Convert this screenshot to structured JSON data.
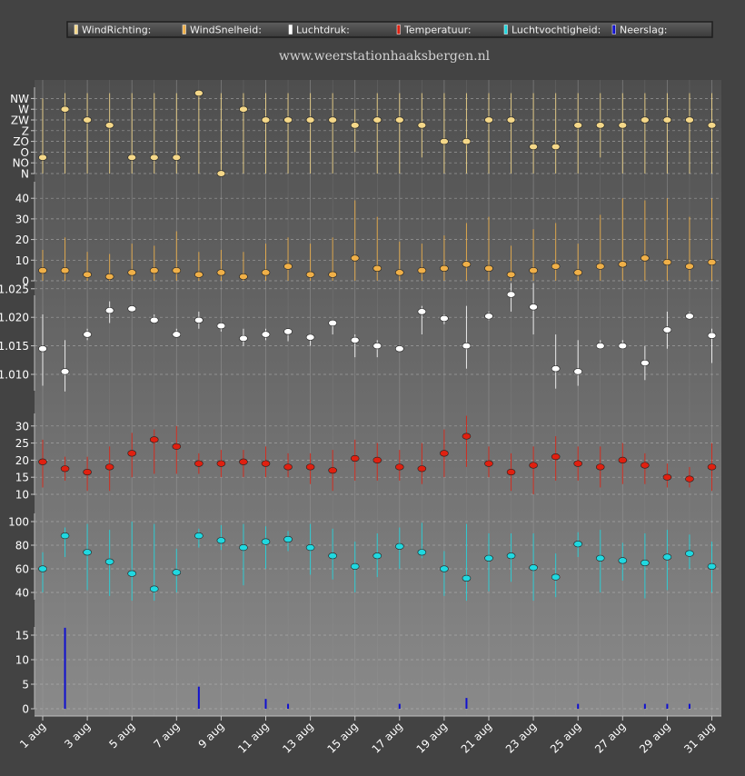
{
  "chart_data": {
    "type": "scatter",
    "subtitle": "www.weerstationhaaksbergen.nl",
    "x_ticks": [
      "1 aug",
      "3 aug",
      "5 aug",
      "7 aug",
      "9 aug",
      "11 aug",
      "13 aug",
      "15 aug",
      "17 aug",
      "19 aug",
      "21 aug",
      "23 aug",
      "25 aug",
      "27 aug",
      "29 aug",
      "31 aug"
    ],
    "legend": [
      {
        "label": "WindRichting:",
        "color": "#f5d889"
      },
      {
        "label": "WindSnelheid:",
        "color": "#f0b048"
      },
      {
        "label": "Luchtdruk:",
        "color": "#ffffff"
      },
      {
        "label": "Temperatuur:",
        "color": "#e02010"
      },
      {
        "label": "Luchtvochtigheid:",
        "color": "#20d8e0"
      },
      {
        "label": "Neerslag:",
        "color": "#1010d0"
      }
    ],
    "panels": [
      {
        "name": "WindRichting",
        "color": "#f5d889",
        "tick_values": [
          0,
          1,
          2,
          3,
          4,
          5,
          6,
          7
        ],
        "tick_labels": [
          "N",
          "NO",
          "O",
          "ZO",
          "Z",
          "ZW",
          "W",
          "NW"
        ],
        "values": [
          1.5,
          6,
          5,
          4.5,
          1.5,
          1.5,
          1.5,
          7.5,
          0,
          6,
          5,
          5,
          5,
          5,
          4.5,
          5,
          5,
          4.5,
          3,
          3,
          5,
          5,
          2.5,
          2.5,
          4.5,
          4.5,
          4.5,
          5,
          5,
          5,
          4.5
        ],
        "high": [
          7,
          7.5,
          7.5,
          7.5,
          7.5,
          7.5,
          7.5,
          7.5,
          7.5,
          7.5,
          7.5,
          7.5,
          7.5,
          7.5,
          6,
          7.5,
          7.5,
          7.5,
          7.5,
          7.5,
          7.5,
          7.5,
          7.5,
          7.5,
          7.5,
          7.5,
          7.5,
          7.5,
          7.5,
          7.5,
          7.5
        ],
        "low": [
          0,
          0,
          0,
          0,
          0,
          0,
          0,
          0,
          0,
          0,
          0,
          0,
          0,
          0,
          2,
          0,
          0,
          1.5,
          0,
          0,
          0,
          0,
          0,
          0,
          0,
          1.5,
          0,
          0,
          0,
          0,
          0
        ]
      },
      {
        "name": "WindSnelheid",
        "color": "#f0b048",
        "ylim": [
          0,
          40
        ],
        "ticks": [
          0,
          10,
          20,
          30,
          40
        ],
        "values": [
          5,
          5,
          3,
          2,
          4,
          5,
          5,
          3,
          4,
          2,
          4,
          7,
          3,
          3,
          11,
          6,
          4,
          5,
          6,
          8,
          6,
          3,
          5,
          7,
          4,
          7,
          8,
          11,
          9,
          7,
          9
        ],
        "high": [
          15,
          21,
          14,
          13,
          18,
          17,
          24,
          14,
          15,
          14,
          18,
          21,
          18,
          21,
          39,
          31,
          19,
          18,
          22,
          28,
          31,
          17,
          25,
          28,
          18,
          32,
          40,
          39,
          40,
          31,
          40
        ],
        "low": [
          0,
          0,
          0,
          0,
          0,
          0,
          0,
          0,
          0,
          0,
          0,
          0,
          0,
          0,
          0,
          0,
          0,
          0,
          0,
          0,
          0,
          0,
          0,
          0,
          0,
          0,
          0,
          0,
          0,
          0,
          0
        ]
      },
      {
        "name": "Luchtdruk",
        "color": "#ffffff",
        "ylim": [
          1.006,
          1.028
        ],
        "ticks": [
          1.01,
          1.015,
          1.02,
          1.025
        ],
        "tick_labels": [
          "1.010",
          "1.015",
          "1.020",
          "1.025"
        ],
        "values": [
          1.0145,
          1.0105,
          1.017,
          1.0212,
          1.0215,
          1.0195,
          1.017,
          1.0195,
          1.0185,
          1.0163,
          1.017,
          1.0175,
          1.0165,
          1.019,
          1.016,
          1.015,
          1.0145,
          1.021,
          1.0198,
          1.015,
          1.0202,
          1.024,
          1.0218,
          1.011,
          1.0105,
          1.015,
          1.015,
          1.012,
          1.0178,
          1.0202,
          1.0168
        ],
        "high": [
          1.0205,
          1.016,
          1.018,
          1.0228,
          1.022,
          1.0205,
          1.018,
          1.021,
          1.019,
          1.018,
          1.018,
          1.018,
          1.017,
          1.0195,
          1.017,
          1.016,
          1.015,
          1.022,
          1.0205,
          1.022,
          1.021,
          1.026,
          1.026,
          1.017,
          1.016,
          1.016,
          1.016,
          1.015,
          1.021,
          1.021,
          1.018
        ],
        "low": [
          1.008,
          1.007,
          1.016,
          1.019,
          1.021,
          1.019,
          1.0165,
          1.018,
          1.0175,
          1.015,
          1.016,
          1.0158,
          1.015,
          1.017,
          1.013,
          1.013,
          1.014,
          1.017,
          1.0188,
          1.011,
          1.0195,
          1.021,
          1.017,
          1.0075,
          1.008,
          1.0145,
          1.0145,
          1.009,
          1.0145,
          1.0198,
          1.012
        ]
      },
      {
        "name": "Temperatuur",
        "color": "#e02010",
        "ylim": [
          7,
          35
        ],
        "ticks": [
          10,
          15,
          20,
          25,
          30
        ],
        "values": [
          19.5,
          17.5,
          16.5,
          18,
          22,
          26,
          24,
          19,
          19,
          19.5,
          19,
          18,
          18,
          17,
          20.5,
          20,
          18,
          17.5,
          22,
          27,
          19,
          16.5,
          18.5,
          21,
          19,
          18,
          20,
          18.5,
          15,
          14.5,
          18
        ],
        "high": [
          26,
          21,
          21,
          24,
          28,
          29,
          30,
          22,
          23,
          23,
          24,
          22,
          22,
          23,
          26,
          25,
          23,
          25,
          29,
          33,
          24,
          22,
          24,
          27,
          24,
          24,
          25,
          22,
          19,
          18,
          25
        ],
        "low": [
          12,
          14,
          11,
          11,
          15,
          16,
          16,
          16,
          15,
          15,
          15,
          15,
          13,
          11,
          14,
          14,
          14,
          13,
          15,
          18,
          15,
          11,
          10,
          14,
          14,
          12,
          13,
          13,
          12,
          12,
          11
        ]
      },
      {
        "name": "Luchtvochtigheid",
        "color": "#20d8e0",
        "ylim": [
          25,
          105
        ],
        "ticks": [
          40,
          60,
          80,
          100
        ],
        "values": [
          60,
          88,
          74,
          66,
          56,
          43,
          57,
          88,
          84,
          78,
          83,
          85,
          78,
          71,
          62,
          71,
          79,
          74,
          60,
          52,
          69,
          71,
          61,
          53,
          81,
          69,
          67,
          65,
          70,
          73,
          62
        ],
        "high": [
          74,
          95,
          98,
          93,
          100,
          98,
          77,
          94,
          97,
          98,
          96,
          92,
          98,
          94,
          83,
          90,
          95,
          99,
          75,
          98,
          90,
          90,
          90,
          73,
          91,
          93,
          82,
          90,
          93,
          89,
          83
        ],
        "low": [
          40,
          70,
          42,
          37,
          33,
          33,
          40,
          78,
          76,
          46,
          60,
          75,
          55,
          51,
          40,
          53,
          60,
          69,
          37,
          33,
          41,
          49,
          33,
          36,
          70,
          40,
          50,
          35,
          42,
          60,
          40
        ]
      },
      {
        "name": "Neerslag",
        "color": "#1010d0",
        "ylim": [
          0,
          20
        ],
        "ticks": [
          0,
          5,
          10,
          15
        ],
        "values": [
          0,
          16.5,
          0,
          0,
          0,
          0,
          0,
          4.5,
          0,
          0,
          2,
          1,
          0,
          0,
          0,
          0,
          1,
          0,
          0,
          2.2,
          0,
          0,
          0,
          0,
          1,
          0,
          0,
          1,
          1,
          1,
          0
        ]
      }
    ]
  }
}
